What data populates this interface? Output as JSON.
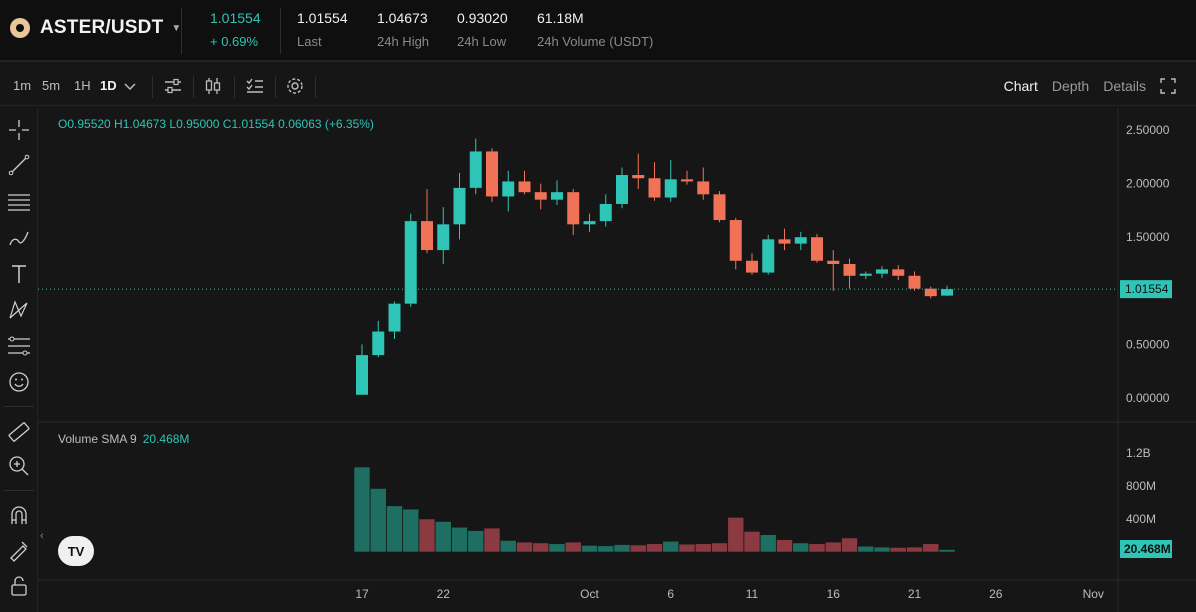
{
  "header": {
    "pair": "ASTER/USDT",
    "price": "1.01554",
    "change": "+ 0.69%",
    "stats": [
      {
        "value": "1.01554",
        "label": "Last"
      },
      {
        "value": "1.04673",
        "label": "24h High"
      },
      {
        "value": "0.93020",
        "label": "24h Low"
      },
      {
        "value": "61.18M",
        "label": "24h Volume (USDT)"
      }
    ]
  },
  "toolbar": {
    "intervals": [
      "1m",
      "5m",
      "1H",
      "1D"
    ],
    "active_interval": "1D",
    "views": [
      "Chart",
      "Depth",
      "Details"
    ],
    "active_view": "Chart"
  },
  "legend": {
    "ohlc": "O0.95520  H1.04673  L0.95000  C1.01554  0.06063 (+6.35%)",
    "volume_label": "Volume SMA 9",
    "volume_value": "20.468M",
    "logo": "TV"
  },
  "colors": {
    "up": "#2ec4b6",
    "down": "#f07358",
    "up_vol": "#1e6e61",
    "down_vol": "#8c3a42"
  },
  "chart_data": {
    "type": "candlestick",
    "price_axis": {
      "min": 0,
      "max": 2.5,
      "ticks": [
        "2.50000",
        "2.00000",
        "1.50000",
        "1.00000",
        "0.50000",
        "0.00000"
      ]
    },
    "volume_axis": {
      "ticks": [
        "1.2B",
        "800M",
        "400M"
      ]
    },
    "x_labels": [
      "17",
      "22",
      "Oct",
      "6",
      "11",
      "16",
      "21",
      "26",
      "Nov"
    ],
    "last_price": "1.01554",
    "last_volume": "20.468M",
    "candles": [
      {
        "o": 0.03,
        "h": 0.5,
        "l": 0.03,
        "c": 0.4,
        "v": 1030
      },
      {
        "o": 0.4,
        "h": 0.72,
        "l": 0.38,
        "c": 0.62,
        "v": 770
      },
      {
        "o": 0.62,
        "h": 0.9,
        "l": 0.55,
        "c": 0.88,
        "v": 560
      },
      {
        "o": 0.88,
        "h": 1.72,
        "l": 0.85,
        "c": 1.65,
        "v": 520
      },
      {
        "o": 1.65,
        "h": 1.95,
        "l": 1.35,
        "c": 1.38,
        "v": 400
      },
      {
        "o": 1.38,
        "h": 1.78,
        "l": 1.25,
        "c": 1.62,
        "v": 370
      },
      {
        "o": 1.62,
        "h": 2.1,
        "l": 1.48,
        "c": 1.96,
        "v": 300
      },
      {
        "o": 1.96,
        "h": 2.42,
        "l": 1.9,
        "c": 2.3,
        "v": 260
      },
      {
        "o": 2.3,
        "h": 2.33,
        "l": 1.83,
        "c": 1.88,
        "v": 290
      },
      {
        "o": 1.88,
        "h": 2.12,
        "l": 1.74,
        "c": 2.02,
        "v": 140
      },
      {
        "o": 2.02,
        "h": 2.12,
        "l": 1.9,
        "c": 1.92,
        "v": 120
      },
      {
        "o": 1.92,
        "h": 2.0,
        "l": 1.76,
        "c": 1.85,
        "v": 110
      },
      {
        "o": 1.85,
        "h": 2.03,
        "l": 1.8,
        "c": 1.92,
        "v": 100
      },
      {
        "o": 1.92,
        "h": 1.95,
        "l": 1.52,
        "c": 1.62,
        "v": 120
      },
      {
        "o": 1.62,
        "h": 1.72,
        "l": 1.55,
        "c": 1.65,
        "v": 80
      },
      {
        "o": 1.65,
        "h": 1.9,
        "l": 1.6,
        "c": 1.81,
        "v": 75
      },
      {
        "o": 1.81,
        "h": 2.15,
        "l": 1.77,
        "c": 2.08,
        "v": 90
      },
      {
        "o": 2.08,
        "h": 2.28,
        "l": 1.95,
        "c": 2.05,
        "v": 85
      },
      {
        "o": 2.05,
        "h": 2.2,
        "l": 1.84,
        "c": 1.87,
        "v": 100
      },
      {
        "o": 1.87,
        "h": 2.22,
        "l": 1.83,
        "c": 2.04,
        "v": 130
      },
      {
        "o": 2.04,
        "h": 2.12,
        "l": 1.99,
        "c": 2.02,
        "v": 95
      },
      {
        "o": 2.02,
        "h": 2.15,
        "l": 1.85,
        "c": 1.9,
        "v": 100
      },
      {
        "o": 1.9,
        "h": 1.93,
        "l": 1.64,
        "c": 1.66,
        "v": 110
      },
      {
        "o": 1.66,
        "h": 1.68,
        "l": 1.2,
        "c": 1.28,
        "v": 420
      },
      {
        "o": 1.28,
        "h": 1.35,
        "l": 1.15,
        "c": 1.17,
        "v": 250
      },
      {
        "o": 1.17,
        "h": 1.52,
        "l": 1.15,
        "c": 1.48,
        "v": 210
      },
      {
        "o": 1.48,
        "h": 1.58,
        "l": 1.38,
        "c": 1.44,
        "v": 150
      },
      {
        "o": 1.44,
        "h": 1.55,
        "l": 1.38,
        "c": 1.5,
        "v": 110
      },
      {
        "o": 1.5,
        "h": 1.53,
        "l": 1.26,
        "c": 1.28,
        "v": 100
      },
      {
        "o": 1.28,
        "h": 1.38,
        "l": 1.0,
        "c": 1.25,
        "v": 120
      },
      {
        "o": 1.25,
        "h": 1.3,
        "l": 1.02,
        "c": 1.14,
        "v": 170
      },
      {
        "o": 1.14,
        "h": 1.18,
        "l": 1.11,
        "c": 1.16,
        "v": 70
      },
      {
        "o": 1.16,
        "h": 1.23,
        "l": 1.12,
        "c": 1.2,
        "v": 60
      },
      {
        "o": 1.2,
        "h": 1.24,
        "l": 1.1,
        "c": 1.14,
        "v": 55
      },
      {
        "o": 1.14,
        "h": 1.18,
        "l": 1.0,
        "c": 1.02,
        "v": 60
      },
      {
        "o": 1.02,
        "h": 1.04,
        "l": 0.93,
        "c": 0.95,
        "v": 100
      },
      {
        "o": 0.955,
        "h": 1.04673,
        "l": 0.95,
        "c": 1.01554,
        "v": 30
      }
    ]
  }
}
